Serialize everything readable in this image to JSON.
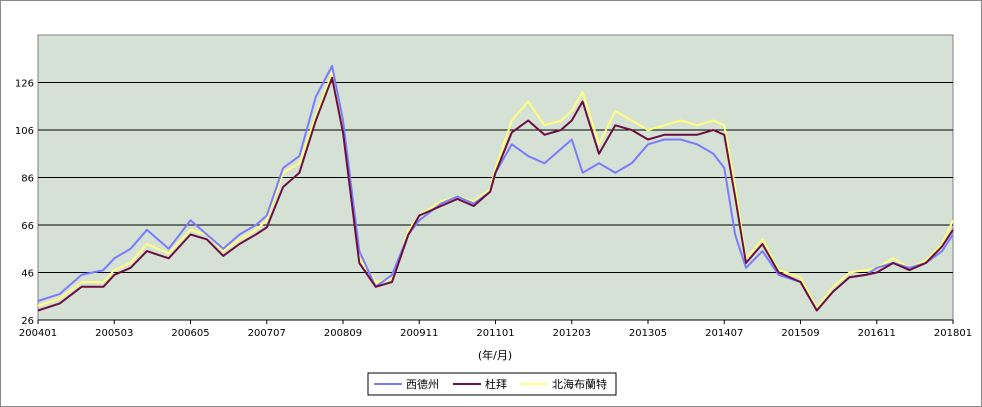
{
  "chart_data": {
    "type": "line",
    "title": "",
    "xlabel": "(年/月)",
    "ylabel": "",
    "ylim": [
      26,
      146
    ],
    "yticks": [
      26,
      46,
      66,
      86,
      106,
      126
    ],
    "xticks": [
      "200401",
      "200503",
      "200605",
      "200707",
      "200809",
      "200911",
      "201101",
      "201203",
      "201305",
      "201407",
      "201509",
      "201611",
      "201801"
    ],
    "grid": "horizontal",
    "legend": "bottom-center",
    "background": "#d4e1d4",
    "x": [
      "2004-01",
      "2004-05",
      "2004-09",
      "2005-01",
      "2005-03",
      "2005-06",
      "2005-09",
      "2006-01",
      "2006-05",
      "2006-08",
      "2006-11",
      "2007-02",
      "2007-05",
      "2007-07",
      "2007-10",
      "2008-01",
      "2008-04",
      "2008-07",
      "2008-09",
      "2008-12",
      "2009-03",
      "2009-06",
      "2009-09",
      "2009-11",
      "2010-03",
      "2010-06",
      "2010-09",
      "2010-12",
      "2011-01",
      "2011-04",
      "2011-07",
      "2011-10",
      "2012-01",
      "2012-03",
      "2012-05",
      "2012-08",
      "2012-11",
      "2013-02",
      "2013-05",
      "2013-08",
      "2013-11",
      "2014-02",
      "2014-05",
      "2014-07",
      "2014-09",
      "2014-11",
      "2015-02",
      "2015-05",
      "2015-09",
      "2015-12",
      "2016-03",
      "2016-06",
      "2016-09",
      "2016-11",
      "2017-02",
      "2017-05",
      "2017-08",
      "2017-11",
      "2018-01"
    ],
    "series": [
      {
        "name": "西德州",
        "color": "#7b7bff",
        "values": [
          34,
          37,
          45,
          47,
          52,
          56,
          64,
          56,
          68,
          62,
          56,
          62,
          66,
          70,
          90,
          95,
          120,
          133,
          110,
          55,
          40,
          45,
          62,
          68,
          75,
          78,
          75,
          80,
          88,
          100,
          95,
          92,
          98,
          102,
          88,
          92,
          88,
          92,
          100,
          102,
          102,
          100,
          96,
          90,
          62,
          48,
          55,
          45,
          42,
          30,
          38,
          44,
          45,
          48,
          50,
          48,
          50,
          55,
          62
        ]
      },
      {
        "name": "杜拜",
        "color": "#6b1040",
        "values": [
          30,
          33,
          40,
          40,
          45,
          48,
          55,
          52,
          62,
          60,
          53,
          58,
          62,
          65,
          82,
          88,
          110,
          128,
          105,
          50,
          40,
          42,
          62,
          70,
          74,
          77,
          74,
          80,
          88,
          105,
          110,
          104,
          106,
          110,
          118,
          96,
          108,
          106,
          102,
          104,
          104,
          104,
          106,
          104,
          78,
          50,
          58,
          46,
          42,
          30,
          38,
          44,
          45,
          46,
          50,
          47,
          50,
          57,
          64
        ]
      },
      {
        "name": "北海布蘭特",
        "color": "#ffff80",
        "values": [
          32,
          35,
          42,
          42,
          47,
          50,
          58,
          54,
          64,
          62,
          55,
          60,
          64,
          68,
          88,
          92,
          112,
          130,
          106,
          52,
          42,
          43,
          64,
          70,
          76,
          78,
          76,
          81,
          90,
          110,
          118,
          108,
          110,
          114,
          122,
          100,
          114,
          110,
          106,
          108,
          110,
          108,
          110,
          108,
          82,
          52,
          60,
          47,
          44,
          31,
          40,
          46,
          47,
          48,
          52,
          48,
          51,
          58,
          68
        ]
      }
    ]
  }
}
